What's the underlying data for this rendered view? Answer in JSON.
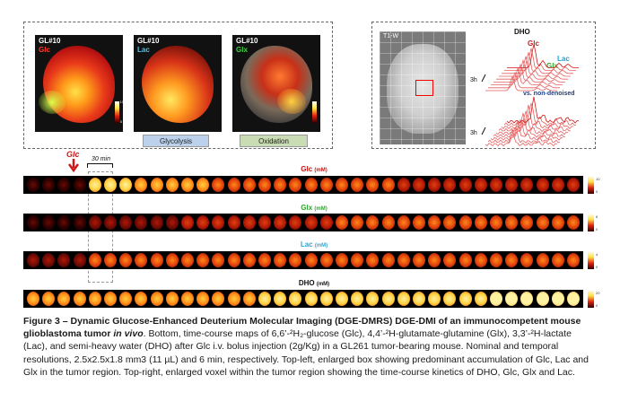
{
  "top_left": {
    "panels": [
      {
        "id": "GL#10",
        "metabolite": "Glc",
        "color": "#e21b1b",
        "scale_max": "10",
        "scale_min": "0"
      },
      {
        "id": "GL#10",
        "metabolite": "Lac",
        "color": "#2fb6e6",
        "scale_max": "",
        "scale_min": ""
      },
      {
        "id": "GL#10",
        "metabolite": "Glx",
        "color": "#2fc02f",
        "scale_max": "",
        "scale_min": ""
      }
    ],
    "pill_glycolysis": "Glycolysis",
    "pill_oxidation": "Oxidation",
    "pill_glycolysis_bg": "#bcd2ec",
    "pill_oxidation_bg": "#c9dcb3"
  },
  "top_right": {
    "mri_label": "T1-W",
    "dho": "DHO",
    "glc": "Glc",
    "lac": "Lac",
    "glx": "Glx",
    "time_label_1": "3h",
    "time_label_2": "3h",
    "vs_label": "vs. non-denoised"
  },
  "time_course": {
    "glc_arrow_label": "Glc",
    "interval_label": "30 min",
    "rows": [
      {
        "name": "Glc",
        "unit": "(mM)",
        "color": "#c41616",
        "scale_max": "10",
        "scale_min": "0"
      },
      {
        "name": "Glx",
        "unit": "(mM)",
        "color": "#2fa52f",
        "scale_max": "6",
        "scale_min": "0"
      },
      {
        "name": "Lac",
        "unit": "(mM)",
        "color": "#2fa6d9",
        "scale_max": "4",
        "scale_min": "0"
      },
      {
        "name": "DHO",
        "unit": "(mM)",
        "color": "#111111",
        "scale_max": "20",
        "scale_min": "0"
      }
    ]
  },
  "caption": {
    "lead": "Figure 3 – Dynamic Glucose-Enhanced Deuterium Molecular Imaging (DGE-DMRS) DGE-DMI of an immunocompetent mouse glioblastoma tumor ",
    "lead_italic": "in vivo",
    "body": ". Bottom, time-course maps of 6,6’-²H₂-glucose (Glc), 4,4’-²H-glutamate-glutamine (Glx), 3,3’-²H-lactate (Lac), and semi-heavy water (DHO) after Glc i.v. bolus injection (2g/Kg) in a GL261 tumor-bearing mouse. Nominal and temporal resolutions, 2.5x2.5x1.8 mm3 (11 µL) and 6 min, respectively. Top-left, enlarged box showing predominant accumulation of Glc, Lac and Glx in the tumor region. Top-right, enlarged voxel within the tumor region showing the time-course kinetics of DHO, Glc, Glx and Lac."
  }
}
